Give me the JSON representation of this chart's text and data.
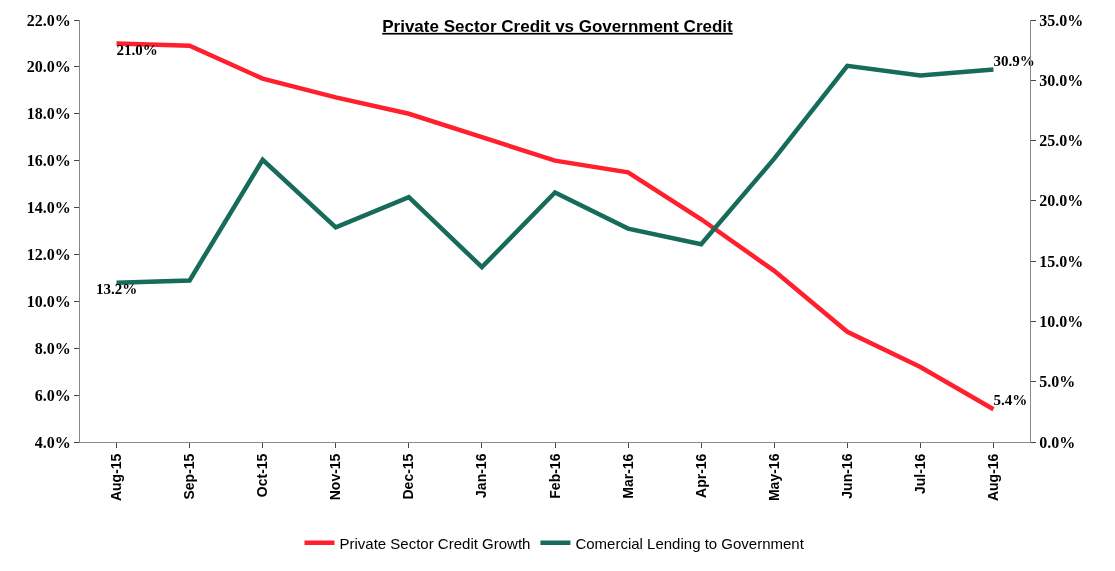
{
  "chart_data": {
    "type": "line",
    "title": "Private Sector Credit vs Government Credit",
    "categories": [
      "Aug-15",
      "Sep-15",
      "Oct-15",
      "Nov-15",
      "Dec-15",
      "Jan-16",
      "Feb-16",
      "Mar-16",
      "Apr-16",
      "May-16",
      "Jun-16",
      "Jul-16",
      "Aug-16"
    ],
    "series": [
      {
        "name": "Private Sector Credit Growth",
        "color": "#ff1f2d",
        "values": [
          21.0,
          20.9,
          19.5,
          18.7,
          18.0,
          17.0,
          16.0,
          15.5,
          13.5,
          11.3,
          8.7,
          7.2,
          5.4
        ],
        "value_labels": [
          "21.0%",
          null,
          null,
          null,
          null,
          null,
          null,
          null,
          null,
          null,
          null,
          null,
          "5.4%"
        ]
      },
      {
        "name": "Comercial Lending to Government",
        "color": "#166b5a",
        "axis": "y2",
        "values": [
          13.2,
          13.4,
          23.4,
          17.8,
          20.3,
          14.5,
          20.7,
          17.7,
          16.4,
          23.5,
          31.2,
          30.4,
          30.9
        ],
        "value_labels": [
          "13.2%",
          null,
          null,
          null,
          null,
          null,
          null,
          null,
          null,
          null,
          null,
          null,
          "30.9%"
        ]
      }
    ],
    "ylim": [
      4,
      22
    ],
    "yticks": [
      {
        "value": 4,
        "label": "4.0%"
      },
      {
        "value": 6,
        "label": "6.0%"
      },
      {
        "value": 8,
        "label": "8.0%"
      },
      {
        "value": 10,
        "label": "10.0%"
      },
      {
        "value": 12,
        "label": "12.0%"
      },
      {
        "value": 14,
        "label": "14.0%"
      },
      {
        "value": 16,
        "label": "16.0%"
      },
      {
        "value": 18,
        "label": "18.0%"
      },
      {
        "value": 20,
        "label": "20.0%"
      },
      {
        "value": 22,
        "label": "22.0%"
      }
    ],
    "y2lim": [
      0,
      35
    ],
    "y2ticks": [
      {
        "value": 0,
        "label": "0.0%"
      },
      {
        "value": 5,
        "label": "5.0%"
      },
      {
        "value": 10,
        "label": "10.0%"
      },
      {
        "value": 15,
        "label": "15.0%"
      },
      {
        "value": 20,
        "label": "20.0%"
      },
      {
        "value": 25,
        "label": "25.0%"
      },
      {
        "value": 30,
        "label": "30.0%"
      },
      {
        "value": 35,
        "label": "35.0%"
      }
    ],
    "legend": "bottom",
    "marker": "none",
    "line_style": "solid"
  }
}
